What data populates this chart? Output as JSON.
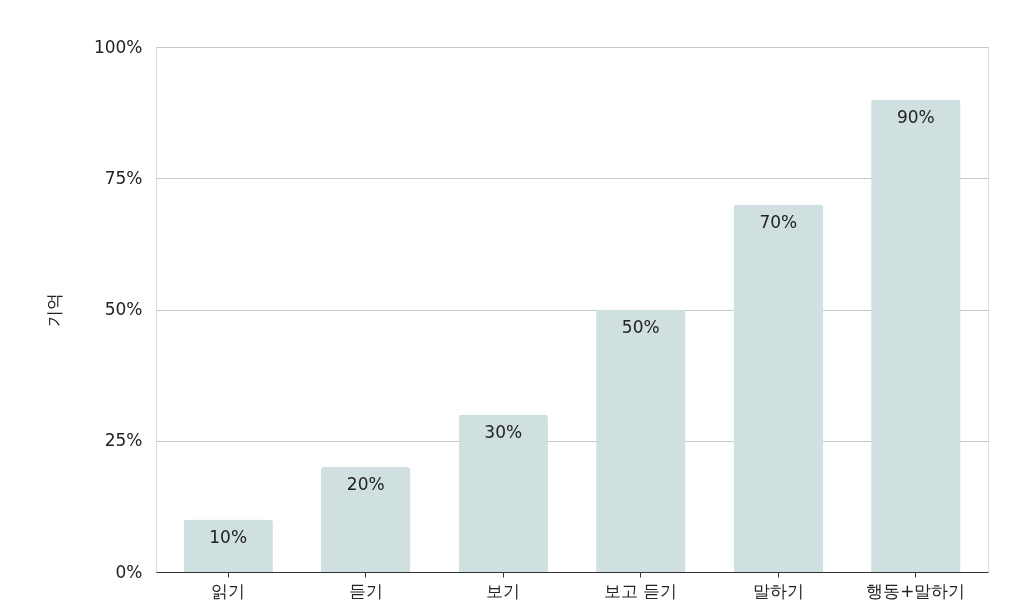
{
  "chart_data": {
    "type": "bar",
    "categories": [
      "읽기",
      "듣기",
      "보기",
      "보고 듣기",
      "말하기",
      "행동+말하기"
    ],
    "values": [
      10,
      20,
      30,
      50,
      70,
      90
    ],
    "value_labels": [
      "10%",
      "20%",
      "30%",
      "50%",
      "70%",
      "90%"
    ],
    "color": "#d0dfe0",
    "ylabel": "기억",
    "ylim": [
      0,
      100
    ],
    "yticks": [
      {
        "value": 0,
        "label": "0%"
      },
      {
        "value": 25,
        "label": "25%"
      },
      {
        "value": 50,
        "label": "50%"
      },
      {
        "value": 75,
        "label": "75%"
      },
      {
        "value": 100,
        "label": "100%"
      }
    ],
    "grid": "y"
  }
}
